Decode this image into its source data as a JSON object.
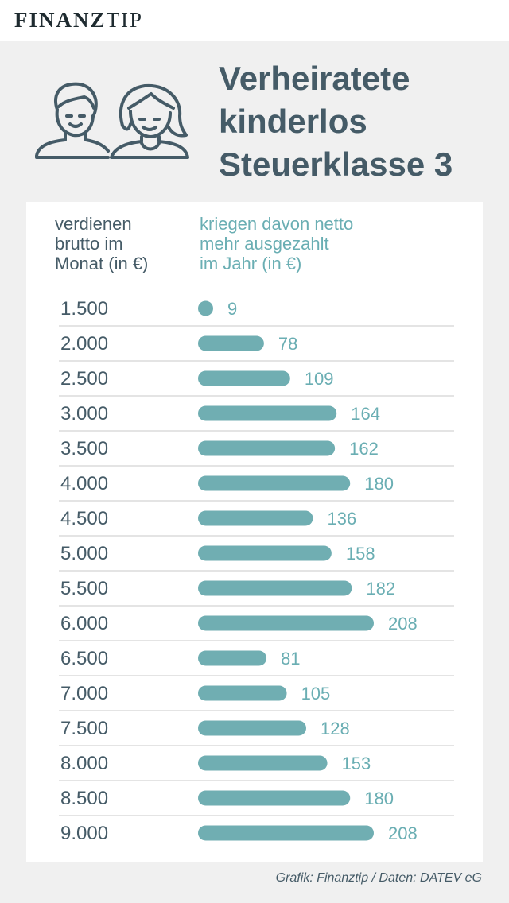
{
  "brand": {
    "part1": "FINANZ",
    "part2": "TIP"
  },
  "title_lines": [
    "Verheiratete",
    "kinderlos",
    "Steuerklasse 3"
  ],
  "column_headers": {
    "left": [
      "verdienen",
      "brutto im",
      "Monat (in €)"
    ],
    "right": [
      "kriegen davon netto",
      "mehr ausgezahlt",
      "im Jahr (in €)"
    ]
  },
  "credit": "Grafik: Finanztip / Daten: DATEV eG",
  "colors": {
    "bar": "#70aeb2",
    "text_dark": "#455b67",
    "text_teal": "#6aaeb3",
    "divider": "#c9c9c9"
  },
  "icon": "married-couple-icon",
  "chart_data": {
    "type": "bar",
    "orientation": "horizontal",
    "categories": [
      "1.500",
      "2.000",
      "2.500",
      "3.000",
      "3.500",
      "4.000",
      "4.500",
      "5.000",
      "5.500",
      "6.000",
      "6.500",
      "7.000",
      "7.500",
      "8.000",
      "8.500",
      "9.000"
    ],
    "values": [
      9,
      78,
      109,
      164,
      162,
      180,
      136,
      158,
      182,
      208,
      81,
      105,
      128,
      153,
      180,
      208
    ],
    "labels": [
      "9",
      "78",
      "109",
      "164",
      "162",
      "180",
      "136",
      "158",
      "182",
      "208",
      "81",
      "105",
      "128",
      "153",
      "180",
      "208"
    ],
    "xlim": [
      0,
      208
    ]
  }
}
